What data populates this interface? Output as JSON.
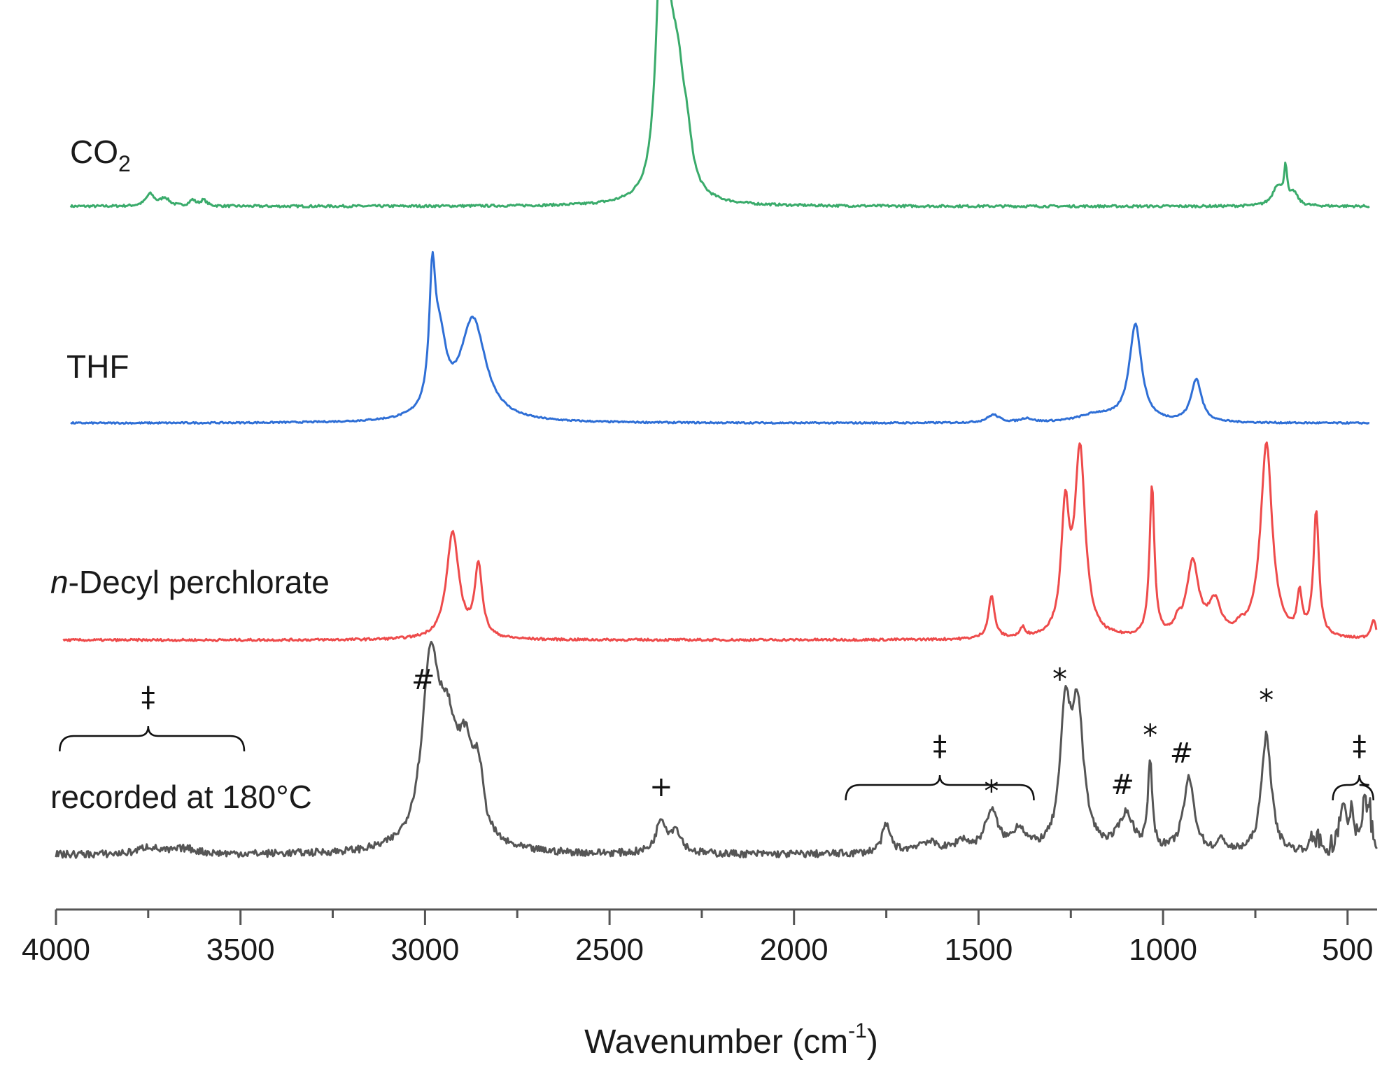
{
  "chart_data": {
    "type": "line",
    "xlabel": "Wavenumber (cm",
    "xlabel_sup": "-1",
    "xlabel_end": ")",
    "xlim": [
      4000,
      420
    ],
    "x_reversed": true,
    "x_ticks": [
      "4000",
      "3500",
      "3000",
      "2500",
      "2000",
      "1500",
      "1000",
      "500"
    ],
    "y_axis": "hidden",
    "series": [
      {
        "name": "CO",
        "name_sub": "2",
        "color": "#3aab6b",
        "x_range": [
          3960,
          440
        ],
        "peaks": [
          {
            "x": 3745,
            "h": 0.06,
            "w": 14
          },
          {
            "x": 3705,
            "h": 0.04,
            "w": 14
          },
          {
            "x": 3630,
            "h": 0.03,
            "w": 10
          },
          {
            "x": 3600,
            "h": 0.03,
            "w": 10
          },
          {
            "x": 2362,
            "h": 1.0,
            "w": 16
          },
          {
            "x": 2340,
            "h": 0.55,
            "w": 20
          },
          {
            "x": 2315,
            "h": 0.5,
            "w": 22
          },
          {
            "x": 2290,
            "h": 0.18,
            "w": 16
          },
          {
            "x": 690,
            "h": 0.1,
            "w": 16
          },
          {
            "x": 668,
            "h": 0.18,
            "w": 5
          },
          {
            "x": 645,
            "h": 0.06,
            "w": 12
          }
        ],
        "noise": 0.006
      },
      {
        "name": "THF",
        "color": "#2f6fd6",
        "x_range": [
          3960,
          440
        ],
        "peaks": [
          {
            "x": 2980,
            "h": 0.62,
            "w": 10
          },
          {
            "x": 2960,
            "h": 0.35,
            "w": 22
          },
          {
            "x": 2870,
            "h": 0.52,
            "w": 42
          },
          {
            "x": 1460,
            "h": 0.04,
            "w": 20
          },
          {
            "x": 1370,
            "h": 0.02,
            "w": 18
          },
          {
            "x": 1180,
            "h": 0.04,
            "w": 60
          },
          {
            "x": 1075,
            "h": 0.5,
            "w": 20
          },
          {
            "x": 910,
            "h": 0.22,
            "w": 17
          }
        ],
        "noise": 0.004
      },
      {
        "name": "n",
        "name_rest": "-Decyl perchlorate",
        "color": "#ee4b4b",
        "x_range": [
          3980,
          420
        ],
        "peaks": [
          {
            "x": 2925,
            "h": 0.55,
            "w": 20
          },
          {
            "x": 2855,
            "h": 0.37,
            "w": 12
          },
          {
            "x": 1465,
            "h": 0.22,
            "w": 10
          },
          {
            "x": 1380,
            "h": 0.05,
            "w": 8
          },
          {
            "x": 1265,
            "h": 0.62,
            "w": 13
          },
          {
            "x": 1225,
            "h": 0.95,
            "w": 17
          },
          {
            "x": 1030,
            "h": 0.77,
            "w": 8
          },
          {
            "x": 960,
            "h": 0.05,
            "w": 10
          },
          {
            "x": 920,
            "h": 0.38,
            "w": 20
          },
          {
            "x": 860,
            "h": 0.17,
            "w": 20
          },
          {
            "x": 790,
            "h": 0.03,
            "w": 15
          },
          {
            "x": 720,
            "h": 1.0,
            "w": 19
          },
          {
            "x": 630,
            "h": 0.2,
            "w": 8
          },
          {
            "x": 585,
            "h": 0.64,
            "w": 9
          },
          {
            "x": 430,
            "h": 0.1,
            "w": 8
          }
        ],
        "noise": 0.006
      },
      {
        "name": "recorded at 180°C",
        "color": "#555555",
        "x_range": [
          4000,
          420
        ],
        "peaks": [
          {
            "x": 3750,
            "h": 0.04,
            "w": 30
          },
          {
            "x": 3650,
            "h": 0.03,
            "w": 40
          },
          {
            "x": 2985,
            "h": 0.96,
            "w": 28
          },
          {
            "x": 2940,
            "h": 0.5,
            "w": 30
          },
          {
            "x": 2890,
            "h": 0.45,
            "w": 28
          },
          {
            "x": 2855,
            "h": 0.3,
            "w": 16
          },
          {
            "x": 2360,
            "h": 0.18,
            "w": 16
          },
          {
            "x": 2320,
            "h": 0.12,
            "w": 18
          },
          {
            "x": 1750,
            "h": 0.15,
            "w": 14
          },
          {
            "x": 1640,
            "h": 0.06,
            "w": 40
          },
          {
            "x": 1545,
            "h": 0.06,
            "w": 20
          },
          {
            "x": 1465,
            "h": 0.22,
            "w": 22
          },
          {
            "x": 1390,
            "h": 0.12,
            "w": 22
          },
          {
            "x": 1265,
            "h": 0.7,
            "w": 16
          },
          {
            "x": 1232,
            "h": 0.75,
            "w": 20
          },
          {
            "x": 1100,
            "h": 0.2,
            "w": 25
          },
          {
            "x": 1035,
            "h": 0.48,
            "w": 7
          },
          {
            "x": 930,
            "h": 0.4,
            "w": 18
          },
          {
            "x": 840,
            "h": 0.07,
            "w": 10
          },
          {
            "x": 720,
            "h": 0.65,
            "w": 16
          },
          {
            "x": 590,
            "h": 0.1,
            "w": 12
          },
          {
            "x": 515,
            "h": 0.25,
            "w": 10
          },
          {
            "x": 490,
            "h": 0.22,
            "w": 8
          },
          {
            "x": 455,
            "h": 0.3,
            "w": 6
          },
          {
            "x": 440,
            "h": 0.2,
            "w": 8
          }
        ],
        "noise": 0.02
      }
    ],
    "annotations": [
      {
        "text": "‡",
        "x": 3750,
        "brace": [
          3990,
          3490
        ]
      },
      {
        "text": "#",
        "x": 3005
      },
      {
        "text": "+",
        "x": 2360
      },
      {
        "text": "‡",
        "x": 1605,
        "brace": [
          1860,
          1350
        ]
      },
      {
        "text": "*",
        "x": 1465
      },
      {
        "text": "*",
        "x": 1280
      },
      {
        "text": "#",
        "x": 1110
      },
      {
        "text": "*",
        "x": 1035
      },
      {
        "text": "#",
        "x": 950
      },
      {
        "text": "*",
        "x": 720
      },
      {
        "text": "‡",
        "x": 468,
        "brace": [
          540,
          430
        ]
      }
    ]
  }
}
